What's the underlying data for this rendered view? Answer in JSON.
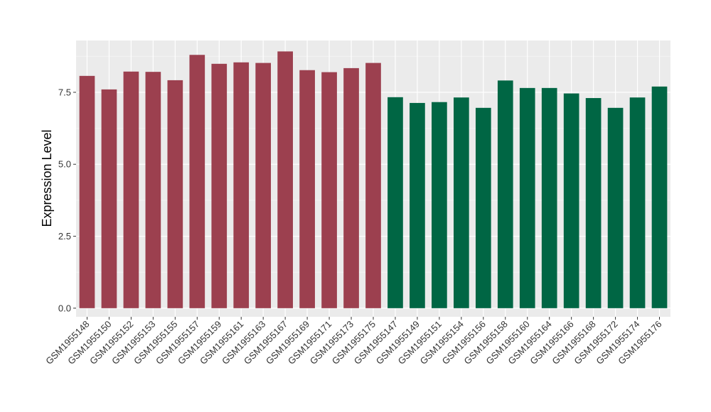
{
  "chart_data": {
    "type": "bar",
    "title": "",
    "xlabel": "",
    "ylabel": "Expression Level",
    "ylim": [
      -0.3,
      9.3
    ],
    "yticks": [
      0.0,
      2.5,
      5.0,
      7.5
    ],
    "ytick_labels": [
      "0.0",
      "2.5",
      "5.0",
      "7.5"
    ],
    "grid": true,
    "legend": "none",
    "panel_background": "#EBEBEB",
    "categories": [
      "GSM1955148",
      "GSM1955150",
      "GSM1955152",
      "GSM1955153",
      "GSM1955155",
      "GSM1955157",
      "GSM1955159",
      "GSM1955161",
      "GSM1955163",
      "GSM1955167",
      "GSM1955169",
      "GSM1955171",
      "GSM1955173",
      "GSM1955175",
      "GSM1955147",
      "GSM1955149",
      "GSM1955151",
      "GSM1955154",
      "GSM1955156",
      "GSM1955158",
      "GSM1955160",
      "GSM1955164",
      "GSM1955166",
      "GSM1955168",
      "GSM1955172",
      "GSM1955174",
      "GSM1955176"
    ],
    "values": [
      8.07,
      7.6,
      8.22,
      8.21,
      7.92,
      8.8,
      8.49,
      8.54,
      8.52,
      8.92,
      8.27,
      8.2,
      8.34,
      8.52,
      7.33,
      7.13,
      7.16,
      7.32,
      6.96,
      7.91,
      7.65,
      7.65,
      7.46,
      7.3,
      6.96,
      7.32,
      7.7
    ],
    "bar_colors": [
      "#9C404F",
      "#9C404F",
      "#9C404F",
      "#9C404F",
      "#9C404F",
      "#9C404F",
      "#9C404F",
      "#9C404F",
      "#9C404F",
      "#9C404F",
      "#9C404F",
      "#9C404F",
      "#9C404F",
      "#9C404F",
      "#006644",
      "#006644",
      "#006644",
      "#006644",
      "#006644",
      "#006644",
      "#006644",
      "#006644",
      "#006644",
      "#006644",
      "#006644",
      "#006644",
      "#006644"
    ]
  }
}
